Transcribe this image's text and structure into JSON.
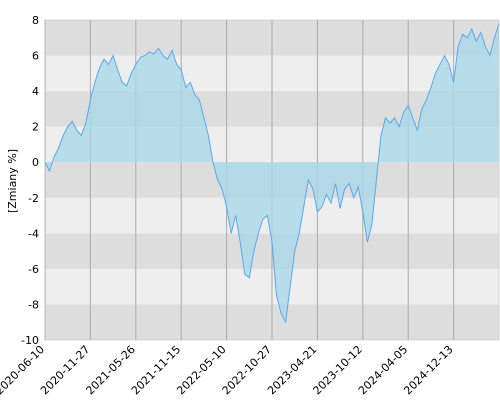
{
  "chart_data": {
    "type": "area",
    "y_label": "[Zmiany %]",
    "categories": [
      "2020-06-10",
      null,
      null,
      null,
      null,
      null,
      null,
      null,
      null,
      null,
      "2020-11-27",
      null,
      null,
      null,
      null,
      null,
      null,
      null,
      null,
      null,
      "2021-05-26",
      null,
      null,
      null,
      null,
      null,
      null,
      null,
      null,
      null,
      "2021-11-15",
      null,
      null,
      null,
      null,
      null,
      null,
      null,
      null,
      null,
      "2022-05-10",
      null,
      null,
      null,
      null,
      null,
      null,
      null,
      null,
      null,
      "2022-10-27",
      null,
      null,
      null,
      null,
      null,
      null,
      null,
      null,
      null,
      "2023-04-21",
      null,
      null,
      null,
      null,
      null,
      null,
      null,
      null,
      null,
      "2023-10-12",
      null,
      null,
      null,
      null,
      null,
      null,
      null,
      null,
      null,
      "2024-04-05",
      null,
      null,
      null,
      null,
      null,
      null,
      null,
      null,
      null,
      "2024-12-13",
      null,
      null,
      null,
      null,
      null,
      null,
      null,
      null,
      null,
      null
    ],
    "series": [
      {
        "color": "#5aa8ec",
        "fill": "#a9d8ea",
        "values": [
          0,
          -0.5,
          0.3,
          0.8,
          1.5,
          2.0,
          2.3,
          1.8,
          1.5,
          2.2,
          3.5,
          4.5,
          5.3,
          5.8,
          5.5,
          6.0,
          5.2,
          4.5,
          4.3,
          5.0,
          5.5,
          5.9,
          6.0,
          6.2,
          6.1,
          6.4,
          6.0,
          5.8,
          6.3,
          5.5,
          5.2,
          4.2,
          4.5,
          3.8,
          3.5,
          2.5,
          1.5,
          0,
          -1.0,
          -1.5,
          -2.5,
          -4.0,
          -3.0,
          -4.5,
          -6.3,
          -6.5,
          -5.0,
          -4.0,
          -3.2,
          -3.0,
          -4.5,
          -7.5,
          -8.5,
          -9.0,
          -7.0,
          -5.0,
          -4.0,
          -2.5,
          -1.0,
          -1.5,
          -2.8,
          -2.5,
          -1.8,
          -2.3,
          -1.2,
          -2.6,
          -1.5,
          -1.2,
          -2.0,
          -1.4,
          -2.8,
          -4.5,
          -3.5,
          -1.0,
          1.5,
          2.5,
          2.2,
          2.5,
          2.0,
          2.8,
          3.2,
          2.5,
          1.8,
          3.0,
          3.5,
          4.2,
          5.0,
          5.5,
          6.0,
          5.5,
          4.5,
          6.5,
          7.2,
          7.0,
          7.5,
          6.8,
          7.3,
          6.5,
          6.0,
          7.0,
          7.8
        ]
      }
    ],
    "ylim": [
      -10,
      8
    ],
    "yticks": [
      -10,
      -8,
      -6,
      -4,
      -2,
      0,
      2,
      4,
      6,
      8
    ],
    "grid": true,
    "band_colors": [
      "#dddddd",
      "#eeeeee"
    ],
    "grid_color": "#aaaaaa"
  }
}
